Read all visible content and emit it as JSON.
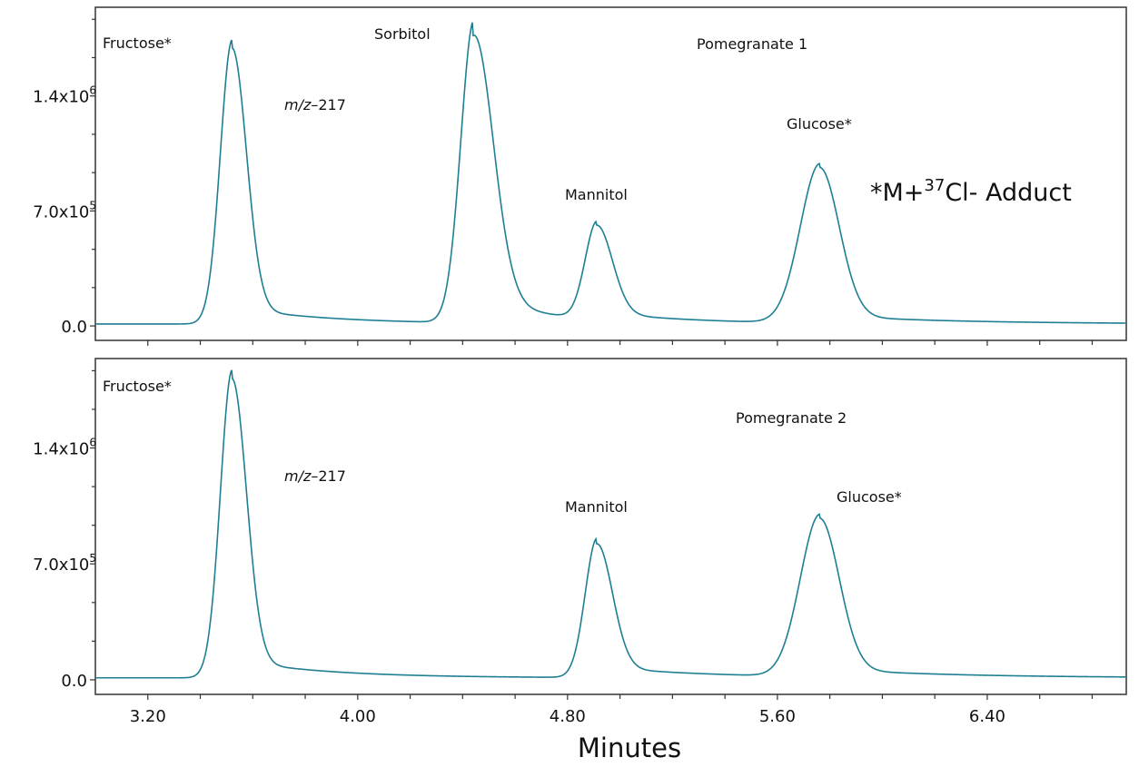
{
  "chart_data": [
    {
      "type": "line",
      "title": "Pomegranate 1",
      "xlabel": "Minutes",
      "xlim": [
        3.0,
        6.93
      ],
      "xticks": [
        "3.20",
        "4.00",
        "4.80",
        "5.60",
        "6.40"
      ],
      "ylim": [
        -88000,
        1940000
      ],
      "yticks": [
        {
          "value": 0,
          "mant": "0.0",
          "exp": ""
        },
        {
          "value": 700000,
          "mant": "7.0x10",
          "exp": "5"
        },
        {
          "value": 1400000,
          "mant": "1.4x10",
          "exp": "6"
        }
      ],
      "baseline": 12000,
      "line_color": "#1f7f92",
      "peaks": [
        {
          "name": "Fructose*",
          "rt": 3.52,
          "height": 1730000
        },
        {
          "name": "Sorbitol",
          "rt": 4.44,
          "height": 1840000
        },
        {
          "name": "Mannitol",
          "rt": 4.91,
          "height": 595000
        },
        {
          "name": "Glucose*",
          "rt": 5.76,
          "height": 970000
        }
      ],
      "annotations": {
        "mz_prefix": "m/z",
        "mz_suffix": "–217",
        "adduct_a": "*M+",
        "adduct_sup": "37",
        "adduct_b": "Cl- Adduct"
      }
    },
    {
      "type": "line",
      "title": "Pomegranate 2",
      "xlabel": "Minutes",
      "xlim": [
        3.0,
        6.93
      ],
      "xticks": [
        "3.20",
        "4.00",
        "4.80",
        "5.60",
        "6.40"
      ],
      "ylim": [
        -88000,
        1940000
      ],
      "yticks": [
        {
          "value": 0,
          "mant": "0.0",
          "exp": ""
        },
        {
          "value": 700000,
          "mant": "7.0x10",
          "exp": "5"
        },
        {
          "value": 1400000,
          "mant": "1.4x10",
          "exp": "6"
        }
      ],
      "baseline": 12000,
      "line_color": "#1f7f92",
      "peaks": [
        {
          "name": "Fructose*",
          "rt": 3.52,
          "height": 1860000
        },
        {
          "name": "Mannitol",
          "rt": 4.91,
          "height": 840000
        },
        {
          "name": "Glucose*",
          "rt": 5.76,
          "height": 980000
        }
      ],
      "annotations": {
        "mz_prefix": "m/z",
        "mz_suffix": "–217"
      }
    }
  ]
}
